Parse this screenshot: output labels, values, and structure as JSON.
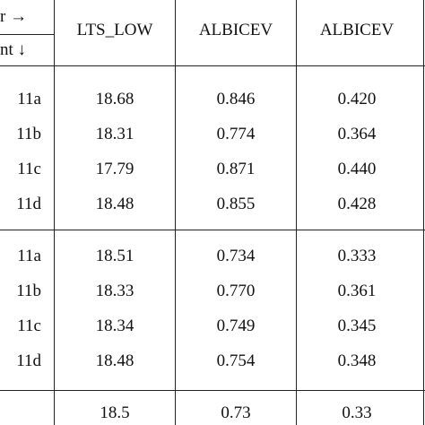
{
  "header": {
    "corner_top": "r →",
    "corner_bottom": "nt ↓",
    "columns": [
      "LTS_LOW",
      "ALBICEV",
      "ALBICEV"
    ]
  },
  "table": {
    "groups": [
      [
        [
          "11a",
          "18.68",
          "0.846",
          "0.420"
        ],
        [
          "11b",
          "18.31",
          "0.774",
          "0.364"
        ],
        [
          "11c",
          "17.79",
          "0.871",
          "0.440"
        ],
        [
          "11d",
          "18.48",
          "0.855",
          "0.428"
        ]
      ],
      [
        [
          "11a",
          "18.51",
          "0.734",
          "0.333"
        ],
        [
          "11b",
          "18.33",
          "0.770",
          "0.361"
        ],
        [
          "11c",
          "18.34",
          "0.749",
          "0.345"
        ],
        [
          "11d",
          "18.48",
          "0.754",
          "0.348"
        ]
      ],
      [
        [
          "",
          "18.5",
          "0.73",
          "0.33"
        ]
      ]
    ]
  }
}
